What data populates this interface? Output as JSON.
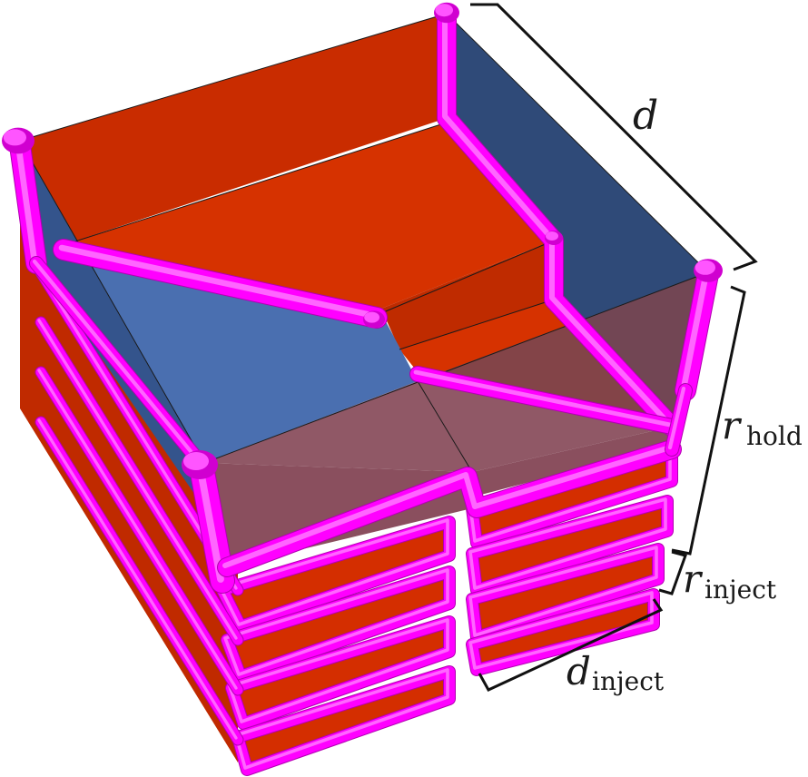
{
  "labels": {
    "d": {
      "base": "d",
      "sub": ""
    },
    "r_hold": {
      "base": "r",
      "sub": "hold"
    },
    "r_inject": {
      "base": "r",
      "sub": "inject"
    },
    "d_inject": {
      "base": "d",
      "sub": "inject"
    }
  },
  "colors": {
    "orange_face": "#d42e00",
    "orange_dark": "#c02a00",
    "blue_face": "#4a6fb0",
    "blue_dark": "#2f4a78",
    "mauve_face": "#8a4f5e",
    "tube": "#ff00ff",
    "brace": "#111111"
  }
}
